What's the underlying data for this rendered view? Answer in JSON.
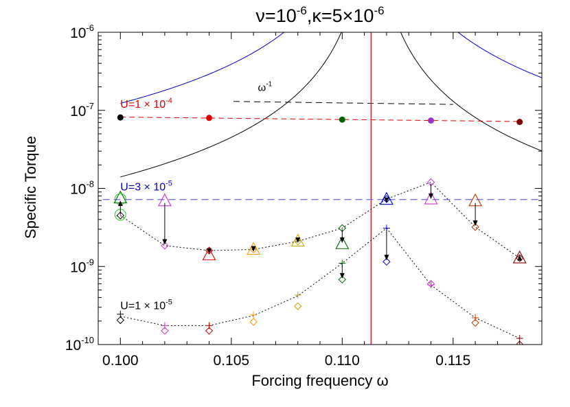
{
  "chart_data": {
    "type": "scatter",
    "title": {
      "nu": "ν=10",
      "nu_exp": "-6",
      "kappa": ",κ=5×10",
      "kappa_exp": "-6"
    },
    "xlabel": "Forcing frequency ω",
    "ylabel": "Specific Torque",
    "x_scale": "linear",
    "y_scale": "log",
    "xlim": [
      0.099,
      0.119
    ],
    "ylim": [
      1e-10,
      1e-06
    ],
    "x_ticks": [
      0.1,
      0.105,
      0.11,
      0.115
    ],
    "x_tick_labels": [
      "0.100",
      "0.105",
      "0.110",
      "0.115"
    ],
    "y_ticks": [
      {
        "value": 1e-10,
        "base": "10",
        "exp": "-10"
      },
      {
        "value": 1e-09,
        "base": "10",
        "exp": "-9"
      },
      {
        "value": 1e-08,
        "base": "10",
        "exp": "-8"
      },
      {
        "value": 1e-07,
        "base": "10",
        "exp": "-7"
      },
      {
        "value": 1e-06,
        "base": "10",
        "exp": "-6"
      }
    ],
    "resonance": {
      "x": 0.1113,
      "color": "#cc0000"
    },
    "curve_labels": [
      {
        "base": "U=1",
        "times": " × 10",
        "exp": "-4",
        "color": "#dd0000",
        "x": 0.1,
        "y": 1.08e-07
      },
      {
        "base": "U=3",
        "times": " × 10",
        "exp": "-5",
        "color": "#0000cc",
        "x": 0.1,
        "y": 9.4e-09
      },
      {
        "base": "U=1",
        "times": " × 10",
        "exp": "-5",
        "color": "#000000",
        "x": 0.1,
        "y": 2.85e-10
      }
    ],
    "omega_label": {
      "base": "ω",
      "exp": "-1",
      "x": 0.1062,
      "y": 1.78e-07
    },
    "omega_line": {
      "x": [
        0.1051,
        0.115
      ],
      "y": [
        1.3e-07,
        1.19e-07
      ],
      "color": "#000000"
    },
    "series": [
      {
        "kind": "filled-circle",
        "name": "U=1 × 10-4",
        "points": [
          {
            "x": 0.1,
            "y": 8.1e-08,
            "color": "#000000"
          },
          {
            "x": 0.104,
            "y": 8e-08,
            "color": "#dd0000"
          },
          {
            "x": 0.11,
            "y": 7.6e-08,
            "color": "#006400"
          },
          {
            "x": 0.114,
            "y": 7.4e-08,
            "color": "#9933cc"
          },
          {
            "x": 0.118,
            "y": 7.1e-08,
            "color": "#800000"
          }
        ],
        "fit": {
          "x": [
            0.1,
            0.118
          ],
          "y": [
            8.2e-08,
            7.2e-08
          ],
          "color": "#dd0000",
          "style": "dashed"
        }
      },
      {
        "kind": "hline",
        "name": "U=3 × 10-5",
        "y": 7.2e-09,
        "xlim": [
          0.0992,
          0.119
        ],
        "color": "#6666dd",
        "style": "dashed"
      }
    ],
    "theory_curves": [
      {
        "name": "blue",
        "color": "#0000cc",
        "A": 1.535e-11,
        "C": 2.7e-09,
        "x0": 0.1113,
        "xmin": 0.1,
        "xmax": 0.119
      },
      {
        "name": "black",
        "color": "#000000",
        "A": 1.79e-12,
        "C": 0.0,
        "x0": 0.1113,
        "xmin": 0.1,
        "xmax": 0.119
      }
    ],
    "dotted_curves": [
      {
        "name": "upper",
        "color": "#000000",
        "x": [
          0.1,
          0.102,
          0.104,
          0.106,
          0.108,
          0.11,
          0.112,
          0.114,
          0.116,
          0.118
        ],
        "y": [
          4.5e-09,
          1.85e-09,
          1.6e-09,
          1.65e-09,
          2.1e-09,
          3.1e-09,
          7.3e-09,
          1.2e-08,
          3.2e-09,
          1.28e-09
        ]
      },
      {
        "name": "lower",
        "color": "#000000",
        "x": [
          0.1,
          0.102,
          0.104,
          0.106,
          0.108,
          0.11,
          0.112,
          0.114,
          0.116,
          0.118
        ],
        "y": [
          2.3e-10,
          1.75e-10,
          1.75e-10,
          2.35e-10,
          4.2e-10,
          1.1e-09,
          3.1e-09,
          5.8e-10,
          2.2e-10,
          1.2e-10
        ]
      }
    ],
    "triangles": [
      {
        "x": 0.1,
        "y": 7.5e-09,
        "color": "#006400"
      },
      {
        "x": 0.102,
        "y": 6.9e-09,
        "color": "#cc33cc"
      },
      {
        "x": 0.104,
        "y": 1.4e-09,
        "color": "#dd0000"
      },
      {
        "x": 0.106,
        "y": 1.65e-09,
        "color": "#ff9900"
      },
      {
        "x": 0.108,
        "y": 2.1e-09,
        "color": "#ccaa00"
      },
      {
        "x": 0.11,
        "y": 1.95e-09,
        "color": "#006400"
      },
      {
        "x": 0.112,
        "y": 7.2e-09,
        "color": "#0000cc"
      },
      {
        "x": 0.114,
        "y": 7.3e-09,
        "color": "#cc33cc"
      },
      {
        "x": 0.116,
        "y": 6.9e-09,
        "color": "#cc3300"
      },
      {
        "x": 0.118,
        "y": 1.28e-09,
        "color": "#800000"
      }
    ],
    "circles": [
      {
        "x": 0.1,
        "y": 7.3e-09,
        "color": "#33cc33"
      },
      {
        "x": 0.1,
        "y": 4.6e-09,
        "color": "#33cc33"
      }
    ],
    "diamonds": [
      {
        "x": 0.1,
        "y": 4.5e-09,
        "color": "#000000"
      },
      {
        "x": 0.102,
        "y": 1.85e-09,
        "color": "#cc33cc"
      },
      {
        "x": 0.104,
        "y": 1.6e-09,
        "color": "#dd0000"
      },
      {
        "x": 0.106,
        "y": 1.65e-09,
        "color": "#ff9900"
      },
      {
        "x": 0.108,
        "y": 2.1e-09,
        "color": "#ccaa00"
      },
      {
        "x": 0.11,
        "y": 3.1e-09,
        "color": "#006400"
      },
      {
        "x": 0.112,
        "y": 7.3e-09,
        "color": "#0000cc"
      },
      {
        "x": 0.114,
        "y": 1.2e-08,
        "color": "#cc33cc"
      },
      {
        "x": 0.116,
        "y": 3.2e-09,
        "color": "#cc3300"
      },
      {
        "x": 0.118,
        "y": 1.28e-09,
        "color": "#800000"
      },
      {
        "x": 0.1,
        "y": 2.05e-10,
        "color": "#000000"
      },
      {
        "x": 0.102,
        "y": 1.5e-10,
        "color": "#cc33cc"
      },
      {
        "x": 0.104,
        "y": 1.5e-10,
        "color": "#dd0000"
      },
      {
        "x": 0.106,
        "y": 1.95e-10,
        "color": "#ff9900"
      },
      {
        "x": 0.108,
        "y": 3.1e-10,
        "color": "#ccaa00"
      },
      {
        "x": 0.11,
        "y": 6.8e-10,
        "color": "#006400"
      },
      {
        "x": 0.112,
        "y": 1.15e-09,
        "color": "#0000cc"
      },
      {
        "x": 0.114,
        "y": 6e-10,
        "color": "#cc33cc"
      },
      {
        "x": 0.116,
        "y": 1.9e-10,
        "color": "#cc3300"
      },
      {
        "x": 0.118,
        "y": 1e-10,
        "color": "#800000"
      }
    ],
    "pluses": [
      {
        "x": 0.1,
        "y": 2.45e-10,
        "color": "#000000"
      },
      {
        "x": 0.102,
        "y": 1.75e-10,
        "color": "#cc33cc"
      },
      {
        "x": 0.104,
        "y": 1.75e-10,
        "color": "#dd0000"
      },
      {
        "x": 0.106,
        "y": 2.4e-10,
        "color": "#ff9900"
      },
      {
        "x": 0.108,
        "y": 4.3e-10,
        "color": "#ccaa00"
      },
      {
        "x": 0.11,
        "y": 1.1e-09,
        "color": "#006400"
      },
      {
        "x": 0.112,
        "y": 3.1e-09,
        "color": "#0000cc"
      },
      {
        "x": 0.114,
        "y": 5.8e-10,
        "color": "#cc33cc"
      },
      {
        "x": 0.116,
        "y": 2.2e-10,
        "color": "#cc3300"
      },
      {
        "x": 0.118,
        "y": 1.2e-10,
        "color": "#800000"
      }
    ],
    "arrows": [
      {
        "x": 0.1,
        "from": 4.6e-09,
        "to": 7e-09
      },
      {
        "x": 0.102,
        "from": 6.5e-09,
        "to": 1.9e-09
      },
      {
        "x": 0.104,
        "from": 1.55e-09,
        "to": 1.45e-09
      },
      {
        "x": 0.106,
        "from": 1.7e-09,
        "to": 1.55e-09
      },
      {
        "x": 0.108,
        "from": 2.2e-09,
        "to": 2e-09
      },
      {
        "x": 0.11,
        "from": 3e-09,
        "to": 2e-09
      },
      {
        "x": 0.11,
        "from": 1.05e-09,
        "to": 7e-10
      },
      {
        "x": 0.112,
        "from": 7.3e-09,
        "to": 6.5e-09
      },
      {
        "x": 0.112,
        "from": 2.9e-09,
        "to": 1.2e-09
      },
      {
        "x": 0.114,
        "from": 1.15e-08,
        "to": 7.3e-09
      },
      {
        "x": 0.116,
        "from": 6.5e-09,
        "to": 3.3e-09
      },
      {
        "x": 0.118,
        "from": 1.2e-09,
        "to": 1.4e-09
      }
    ],
    "grid": false,
    "legend": "none"
  }
}
